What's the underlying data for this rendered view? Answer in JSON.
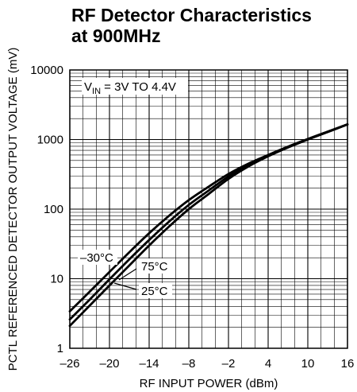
{
  "chart_data": {
    "type": "line",
    "title": "RF Detector Characteristics",
    "subtitle": "at 900MHz",
    "xlabel": "RF INPUT POWER (dBm)",
    "ylabel": "PCTL REFERENCED DETECTOR OUTPUT VOLTAGE (mV)",
    "xlim": [
      -26,
      16
    ],
    "ylim": [
      1,
      10000
    ],
    "yscale": "log",
    "grid": true,
    "xticks": [
      -26,
      -20,
      -14,
      -8,
      -2,
      4,
      10,
      16
    ],
    "xtick_labels": [
      "–26",
      "–20",
      "–14",
      "–8",
      "–2",
      "4",
      "10",
      "16"
    ],
    "yticks": [
      1,
      10,
      100,
      1000,
      10000
    ],
    "ytick_labels": [
      "1",
      "10",
      "100",
      "1000",
      "10000"
    ],
    "annotation_vin": {
      "main": "V",
      "sub": "IN",
      "rest": " = 3V TO 4.4V"
    },
    "series": [
      {
        "name": "–30°C",
        "x": [
          -26,
          -23,
          -20,
          -17,
          -14,
          -11,
          -8,
          -5,
          -2,
          1,
          4,
          7,
          10,
          13,
          16
        ],
        "y": [
          3.4,
          6.5,
          12.5,
          24,
          45,
          80,
          135,
          210,
          320,
          450,
          600,
          790,
          1020,
          1300,
          1650
        ]
      },
      {
        "name": "25°C",
        "x": [
          -26,
          -23,
          -20,
          -17,
          -14,
          -11,
          -8,
          -5,
          -2,
          1,
          4,
          7,
          10,
          13,
          16
        ],
        "y": [
          2.6,
          5.0,
          9.8,
          19,
          36,
          66,
          115,
          185,
          295,
          430,
          590,
          780,
          1010,
          1290,
          1650
        ]
      },
      {
        "name": "75°C",
        "x": [
          -26,
          -23,
          -20,
          -17,
          -14,
          -11,
          -8,
          -5,
          -2,
          1,
          4,
          7,
          10,
          13,
          16
        ],
        "y": [
          2.1,
          4.1,
          8.0,
          15.5,
          30,
          56,
          100,
          165,
          272,
          410,
          575,
          770,
          1000,
          1280,
          1650
        ]
      }
    ]
  }
}
